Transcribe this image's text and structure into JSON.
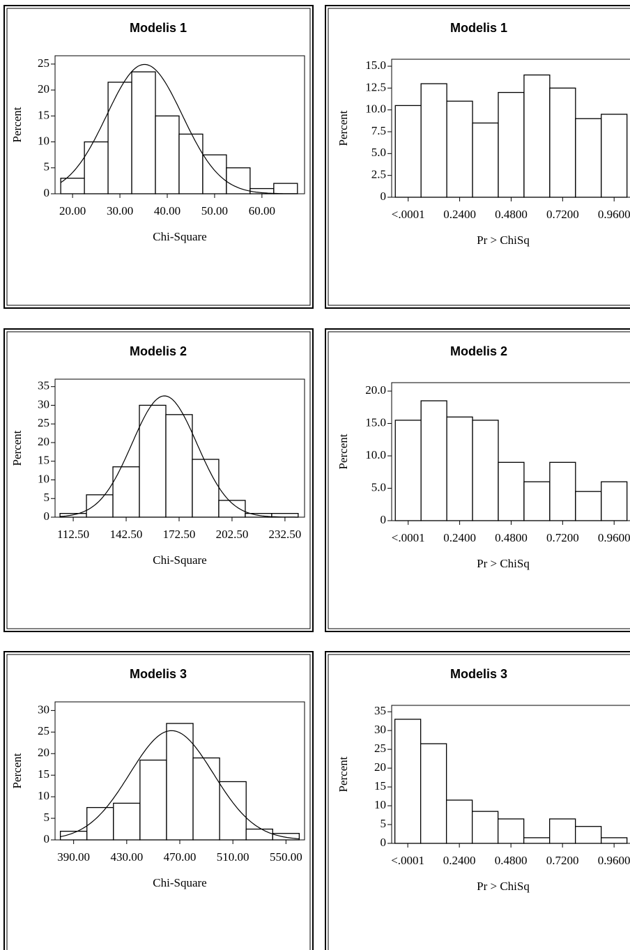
{
  "chart_data": [
    {
      "type": "histogram",
      "title": "Modelis 1",
      "x_label": "Chi-Square",
      "y_label": "Percent",
      "color": "#ffffff",
      "bins": [
        17.5,
        22.5,
        27.5,
        32.5,
        37.5,
        42.5,
        47.5,
        52.5,
        57.5,
        62.5,
        67.5
      ],
      "values": [
        3,
        10,
        21.5,
        23.5,
        15,
        11.5,
        7.5,
        5,
        1,
        2
      ],
      "xlim": [
        16.3,
        69
      ],
      "ylim": [
        0,
        26.6
      ],
      "xticks": [
        {
          "value": 20,
          "label": "20.00"
        },
        {
          "value": 30,
          "label": "30.00"
        },
        {
          "value": 40,
          "label": "40.00"
        },
        {
          "value": 50,
          "label": "50.00"
        },
        {
          "value": 60,
          "label": "60.00"
        }
      ],
      "yticks": [
        0,
        5,
        10,
        15,
        20,
        25
      ],
      "normal_curve": {
        "mean": 35.2,
        "sd": 8
      }
    },
    {
      "type": "histogram",
      "title": "Modelis 1",
      "x_label": "Pr > ChiSq",
      "y_label": "Percent",
      "color": "#ffffff",
      "bins": [
        -0.06,
        0.06,
        0.18,
        0.3,
        0.42,
        0.54,
        0.66,
        0.78,
        0.9,
        1.02
      ],
      "values": [
        10.5,
        13,
        11,
        8.5,
        12,
        14,
        12.5,
        9,
        9.5
      ],
      "xlim": [
        -0.077,
        1.06
      ],
      "ylim": [
        0,
        15.8
      ],
      "xticks": [
        {
          "value": 0,
          "label": "<.0001"
        },
        {
          "value": 0.24,
          "label": "0.2400"
        },
        {
          "value": 0.48,
          "label": "0.4800"
        },
        {
          "value": 0.72,
          "label": "0.7200"
        },
        {
          "value": 0.96,
          "label": "0.9600"
        }
      ],
      "yticks": [
        0,
        2.5,
        {
          "value": 5,
          "label": "5.0"
        },
        7.5,
        {
          "value": 10,
          "label": "10.0"
        },
        12.5,
        {
          "value": 15,
          "label": "15.0"
        }
      ]
    },
    {
      "type": "histogram",
      "title": "Modelis 2",
      "x_label": "Chi-Square",
      "y_label": "Percent",
      "color": "#ffffff",
      "bins": [
        105,
        120,
        135,
        150,
        165,
        180,
        195,
        210,
        225,
        240
      ],
      "values": [
        1,
        6,
        13.5,
        30,
        27.5,
        15.5,
        4.5,
        1,
        1
      ],
      "xlim": [
        102.2,
        243.6
      ],
      "ylim": [
        0,
        37
      ],
      "xticks": [
        {
          "value": 112.5,
          "label": "112.50"
        },
        {
          "value": 142.5,
          "label": "142.50"
        },
        {
          "value": 172.5,
          "label": "172.50"
        },
        {
          "value": 202.5,
          "label": "202.50"
        },
        {
          "value": 232.5,
          "label": "232.50"
        }
      ],
      "yticks": [
        0,
        5,
        10,
        15,
        20,
        25,
        30,
        35
      ],
      "normal_curve": {
        "mean": 164.2,
        "sd": 18.4
      }
    },
    {
      "type": "histogram",
      "title": "Modelis 2",
      "x_label": "Pr > ChiSq",
      "y_label": "Percent",
      "color": "#ffffff",
      "bins": [
        -0.06,
        0.06,
        0.18,
        0.3,
        0.42,
        0.54,
        0.66,
        0.78,
        0.9,
        1.02
      ],
      "values": [
        15.5,
        18.5,
        16,
        15.5,
        9,
        6,
        9,
        4.5,
        6
      ],
      "xlim": [
        -0.077,
        1.06
      ],
      "ylim": [
        0,
        21.3
      ],
      "xticks": [
        {
          "value": 0,
          "label": "<.0001"
        },
        {
          "value": 0.24,
          "label": "0.2400"
        },
        {
          "value": 0.48,
          "label": "0.4800"
        },
        {
          "value": 0.72,
          "label": "0.7200"
        },
        {
          "value": 0.96,
          "label": "0.9600"
        }
      ],
      "yticks": [
        0,
        {
          "value": 5,
          "label": "5.0"
        },
        {
          "value": 10,
          "label": "10.0"
        },
        {
          "value": 15,
          "label": "15.0"
        },
        {
          "value": 20,
          "label": "20.0"
        }
      ]
    },
    {
      "type": "histogram",
      "title": "Modelis 3",
      "x_label": "Chi-Square",
      "y_label": "Percent",
      "color": "#ffffff",
      "bins": [
        380,
        400,
        420,
        440,
        460,
        480,
        500,
        520,
        540,
        560
      ],
      "values": [
        2,
        7.5,
        8.5,
        18.5,
        27,
        19,
        13.5,
        2.5,
        1.5
      ],
      "xlim": [
        376,
        564
      ],
      "ylim": [
        0,
        32
      ],
      "xticks": [
        {
          "value": 390,
          "label": "390.00"
        },
        {
          "value": 430,
          "label": "430.00"
        },
        {
          "value": 470,
          "label": "470.00"
        },
        {
          "value": 510,
          "label": "510.00"
        },
        {
          "value": 550,
          "label": "550.00"
        }
      ],
      "yticks": [
        0,
        5,
        10,
        15,
        20,
        25,
        30
      ],
      "normal_curve": {
        "mean": 463.8,
        "sd": 31.5
      }
    },
    {
      "type": "histogram",
      "title": "Modelis 3",
      "x_label": "Pr > ChiSq",
      "y_label": "Percent",
      "color": "#ffffff",
      "bins": [
        -0.06,
        0.06,
        0.18,
        0.3,
        0.42,
        0.54,
        0.66,
        0.78,
        0.9,
        1.02
      ],
      "values": [
        33,
        26.5,
        11.5,
        8.5,
        6.5,
        1.5,
        6.5,
        4.5,
        1.5
      ],
      "xlim": [
        -0.075,
        1.06
      ],
      "ylim": [
        0,
        36.7
      ],
      "xticks": [
        {
          "value": 0,
          "label": "<.0001"
        },
        {
          "value": 0.24,
          "label": "0.2400"
        },
        {
          "value": 0.48,
          "label": "0.4800"
        },
        {
          "value": 0.72,
          "label": "0.7200"
        },
        {
          "value": 0.96,
          "label": "0.9600"
        }
      ],
      "yticks": [
        0,
        5,
        10,
        15,
        20,
        25,
        30,
        35
      ]
    }
  ]
}
